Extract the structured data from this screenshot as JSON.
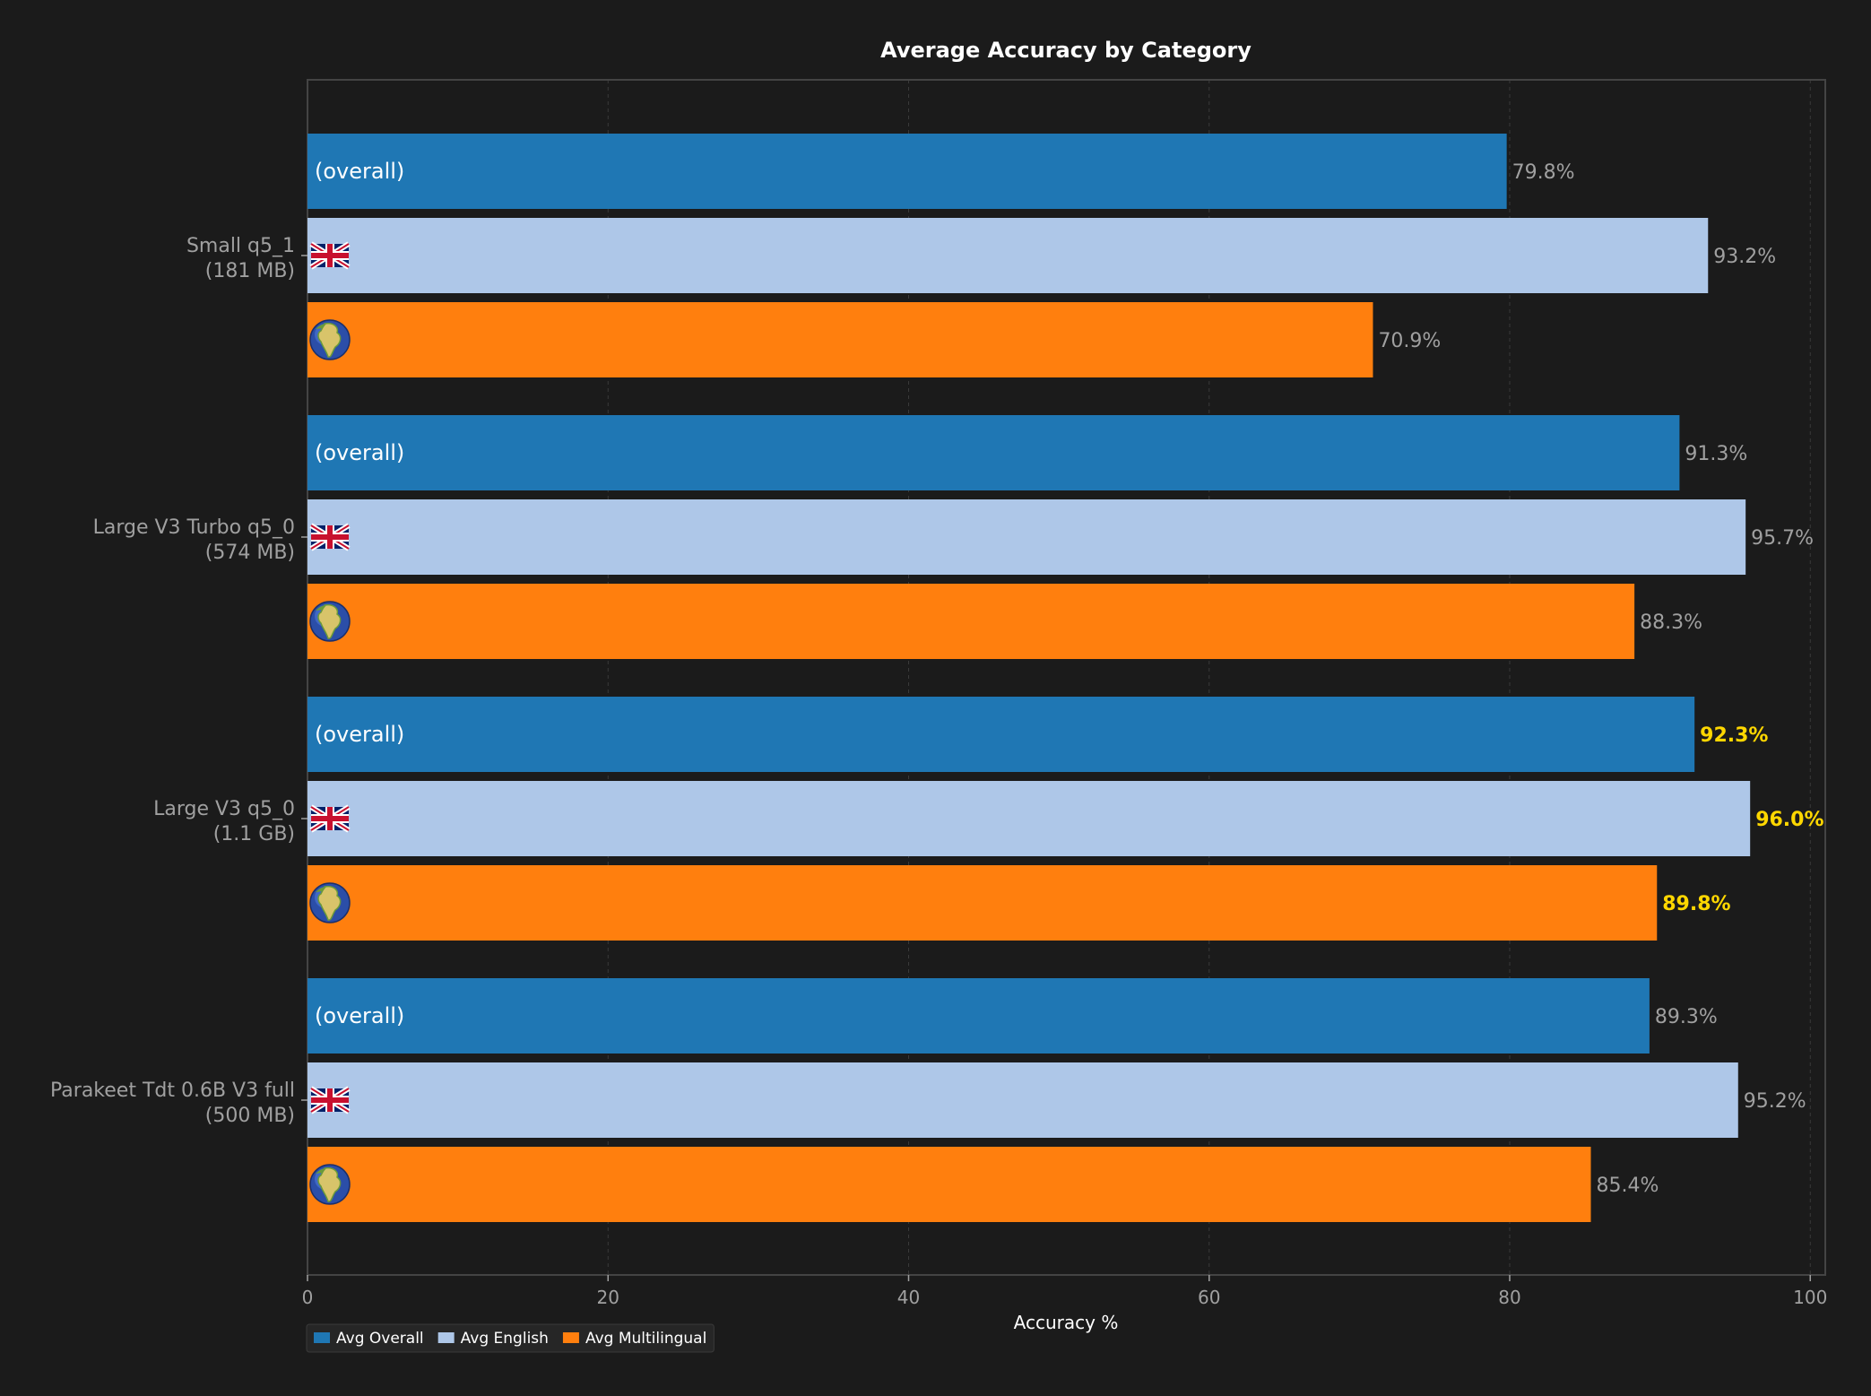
{
  "chart_data": {
    "type": "bar",
    "orientation": "horizontal",
    "title": "Average Accuracy by Category",
    "xlabel": "Accuracy %",
    "ylabel": "",
    "xlim": [
      0,
      101
    ],
    "xticks": [
      0,
      20,
      40,
      60,
      80,
      100
    ],
    "grid": "vertical dashed",
    "legend_position": "bottom-left",
    "value_suffix": "%",
    "overall_bar_label": "(overall)",
    "english_bar_icon": "uk-flag-icon",
    "multilingual_bar_icon": "globe-icon",
    "categories": [
      {
        "name": "Small q5_1",
        "size": "(181 MB)"
      },
      {
        "name": "Large V3 Turbo q5_0",
        "size": "(574 MB)"
      },
      {
        "name": "Large V3 q5_0",
        "size": "(1.1 GB)"
      },
      {
        "name": "Parakeet Tdt 0.6B V3 full",
        "size": "(500 MB)"
      }
    ],
    "series": [
      {
        "name": "Avg Overall",
        "color": "#1f77b4",
        "values": [
          79.8,
          91.3,
          92.3,
          89.3
        ]
      },
      {
        "name": "Avg English",
        "color": "#aec7e8",
        "values": [
          93.2,
          95.7,
          96.0,
          95.2
        ]
      },
      {
        "name": "Avg Multilingual",
        "color": "#ff7f0e",
        "values": [
          70.9,
          88.3,
          89.8,
          85.4
        ]
      }
    ],
    "highlighted_category_index": 2,
    "colors": {
      "background": "#1b1b1b",
      "text": "#a0a0a0",
      "title": "#ffffff",
      "highlight": "#ffd700",
      "grid": "#3a3a3a",
      "spine": "#444444",
      "legend_bg": "#262626"
    }
  }
}
